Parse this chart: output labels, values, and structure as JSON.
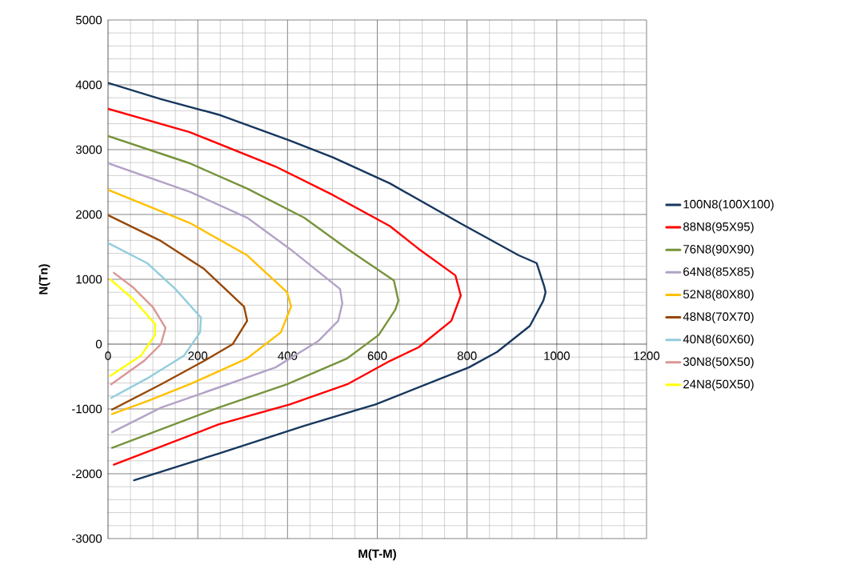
{
  "chart_data": {
    "type": "line",
    "xlabel": "M(T-M)",
    "ylabel": "N(Tn)",
    "xlim": [
      0,
      1200
    ],
    "ylim": [
      -3000,
      5000
    ],
    "xticks": [
      0,
      200,
      400,
      600,
      800,
      1000,
      1200
    ],
    "yticks": [
      -3000,
      -2000,
      -1000,
      0,
      1000,
      2000,
      3000,
      4000,
      5000
    ],
    "grid": true,
    "legend": "right",
    "series": [
      {
        "name": "100N8(100X100)",
        "color": "#17375e",
        "x": [
          0,
          118,
          246,
          405,
          501,
          628,
          786,
          915,
          955,
          972,
          975,
          970,
          940,
          867,
          804,
          742,
          596,
          437,
          246,
          58
        ],
        "values": [
          4030,
          3780,
          3540,
          3140,
          2880,
          2480,
          1860,
          1370,
          1250,
          890,
          800,
          670,
          280,
          -120,
          -360,
          -530,
          -930,
          -1260,
          -1690,
          -2100
        ]
      },
      {
        "name": "88N8(95X95)",
        "color": "#ff0000",
        "x": [
          0,
          182,
          373,
          501,
          628,
          692,
          774,
          786,
          765,
          692,
          628,
          533,
          405,
          246,
          13
        ],
        "values": [
          3630,
          3270,
          2740,
          2300,
          1820,
          1470,
          1060,
          750,
          360,
          -50,
          -260,
          -620,
          -930,
          -1240,
          -1860
        ]
      },
      {
        "name": "76N8(90X90)",
        "color": "#77933c",
        "x": [
          0,
          182,
          310,
          437,
          533,
          637,
          647,
          640,
          603,
          533,
          399,
          246,
          9
        ],
        "values": [
          3210,
          2790,
          2400,
          1950,
          1470,
          980,
          670,
          530,
          140,
          -220,
          -620,
          -980,
          -1600
        ]
      },
      {
        "name": "64N8(85X85)",
        "color": "#b3a2c7",
        "x": [
          0,
          182,
          310,
          405,
          517,
          522,
          513,
          469,
          373,
          246,
          118,
          9
        ],
        "values": [
          2790,
          2350,
          1950,
          1470,
          850,
          630,
          360,
          50,
          -360,
          -670,
          -980,
          -1360
        ]
      },
      {
        "name": "52N8(80X80)",
        "color": "#ffc000",
        "x": [
          0,
          182,
          310,
          399,
          408,
          385,
          310,
          182,
          87,
          9
        ],
        "values": [
          2380,
          1870,
          1370,
          800,
          580,
          180,
          -220,
          -620,
          -880,
          -1080
        ]
      },
      {
        "name": "48N8(70X70)",
        "color": "#984807",
        "x": [
          0,
          118,
          214,
          303,
          310,
          278,
          214,
          118,
          9
        ],
        "values": [
          1990,
          1590,
          1160,
          580,
          360,
          0,
          -260,
          -620,
          -1010
        ]
      },
      {
        "name": "40N8(60X60)",
        "color": "#92cddc",
        "x": [
          0,
          87,
          150,
          207,
          205,
          169,
          87,
          7
        ],
        "values": [
          1560,
          1250,
          850,
          410,
          180,
          -180,
          -530,
          -830
        ]
      },
      {
        "name": "30N8(50X50)",
        "color": "#d99694",
        "x": [
          13,
          55,
          100,
          128,
          118,
          80,
          7
        ],
        "values": [
          1100,
          880,
          570,
          250,
          0,
          -260,
          -620
        ]
      },
      {
        "name": "24N8(50X50)",
        "color": "#ffff00",
        "x": [
          5,
          55,
          105,
          105,
          73,
          5
        ],
        "values": [
          1000,
          700,
          310,
          140,
          -180,
          -490
        ]
      }
    ]
  }
}
